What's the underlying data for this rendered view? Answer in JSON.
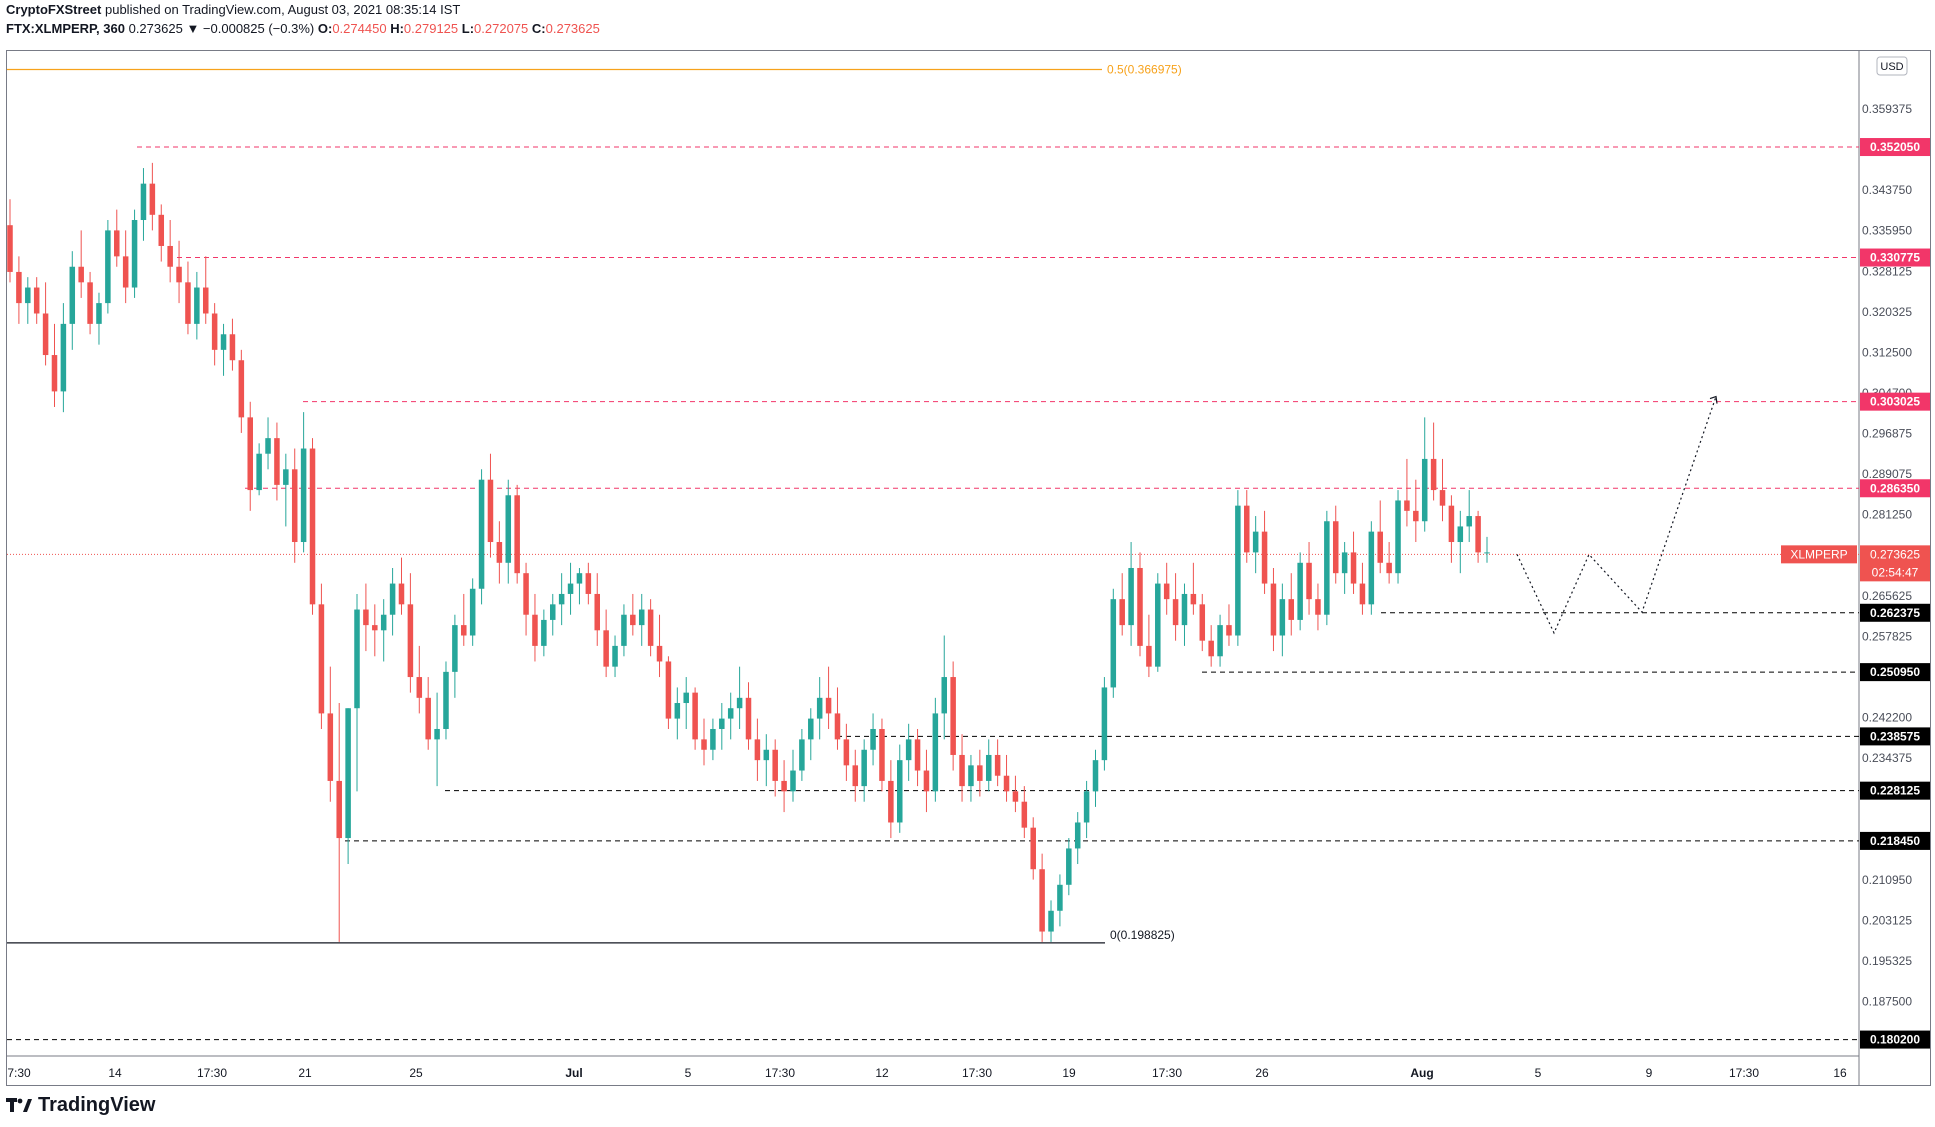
{
  "header": {
    "publisher": "CryptoFXStreet",
    "published_text": "published on TradingView.com, August 03, 2021 08:35:14 IST",
    "symbol": "FTX:XLMPERP, 360",
    "last": "0.273625",
    "change": "▼ −0.000825 (−0.3%)",
    "o_label": "O:",
    "o": "0.274450",
    "h_label": "H:",
    "h": "0.279125",
    "l_label": "L:",
    "l": "0.272075",
    "c_label": "C:",
    "c": "0.273625"
  },
  "footer": {
    "brand": "TradingView"
  },
  "colors": {
    "up": "#26a69a",
    "down": "#ef5350",
    "fib": "#f7a21b",
    "resistance": "#f23669",
    "support": "#000000"
  },
  "chart_data": {
    "type": "candlestick",
    "currency_label": "USD",
    "ylim": [
      0.178,
      0.369
    ],
    "y_ticks": [
      "0.359375",
      "0.343750",
      "0.335950",
      "0.328125",
      "0.320325",
      "0.312500",
      "0.304700",
      "0.296875",
      "0.289075",
      "0.281250",
      "0.265625",
      "0.257825",
      "0.242200",
      "0.234375",
      "0.210950",
      "0.203125",
      "0.195325",
      "0.187500"
    ],
    "x_ticks": [
      "7:30",
      "14",
      "17:30",
      "21",
      "25",
      "Jul",
      "5",
      "17:30",
      "12",
      "17:30",
      "19",
      "17:30",
      "26",
      "Aug",
      "5",
      "9",
      "17:30",
      "16"
    ],
    "resistance_levels": [
      "0.352050",
      "0.330775",
      "0.303025",
      "0.286350"
    ],
    "support_levels": [
      "0.262375",
      "0.250950",
      "0.238575",
      "0.228125",
      "0.218450",
      "0.180200"
    ],
    "current_price": {
      "symbol": "XLMPERP",
      "value": "0.273625",
      "countdown": "02:54:47"
    },
    "fib_top": "0.5(0.366975)",
    "fib_bottom": "0(0.198825)",
    "candles": [
      [
        0.337,
        0.342,
        0.326,
        0.328
      ],
      [
        0.328,
        0.331,
        0.318,
        0.322
      ],
      [
        0.322,
        0.327,
        0.318,
        0.325
      ],
      [
        0.325,
        0.327,
        0.318,
        0.32
      ],
      [
        0.32,
        0.326,
        0.31,
        0.312
      ],
      [
        0.312,
        0.318,
        0.302,
        0.305
      ],
      [
        0.305,
        0.322,
        0.301,
        0.318
      ],
      [
        0.318,
        0.332,
        0.313,
        0.329
      ],
      [
        0.329,
        0.336,
        0.323,
        0.326
      ],
      [
        0.326,
        0.328,
        0.316,
        0.318
      ],
      [
        0.318,
        0.324,
        0.314,
        0.322
      ],
      [
        0.322,
        0.338,
        0.32,
        0.336
      ],
      [
        0.336,
        0.34,
        0.329,
        0.331
      ],
      [
        0.331,
        0.336,
        0.322,
        0.325
      ],
      [
        0.325,
        0.34,
        0.323,
        0.338
      ],
      [
        0.338,
        0.348,
        0.334,
        0.345
      ],
      [
        0.345,
        0.349,
        0.336,
        0.339
      ],
      [
        0.339,
        0.341,
        0.33,
        0.333
      ],
      [
        0.333,
        0.338,
        0.326,
        0.329
      ],
      [
        0.329,
        0.334,
        0.322,
        0.326
      ],
      [
        0.326,
        0.33,
        0.316,
        0.318
      ],
      [
        0.318,
        0.328,
        0.315,
        0.325
      ],
      [
        0.325,
        0.331,
        0.318,
        0.32
      ],
      [
        0.32,
        0.322,
        0.31,
        0.313
      ],
      [
        0.313,
        0.318,
        0.308,
        0.316
      ],
      [
        0.316,
        0.319,
        0.309,
        0.311
      ],
      [
        0.311,
        0.313,
        0.297,
        0.3
      ],
      [
        0.3,
        0.303,
        0.282,
        0.286
      ],
      [
        0.286,
        0.295,
        0.285,
        0.293
      ],
      [
        0.293,
        0.3,
        0.29,
        0.296
      ],
      [
        0.296,
        0.299,
        0.284,
        0.287
      ],
      [
        0.287,
        0.293,
        0.279,
        0.29
      ],
      [
        0.29,
        0.294,
        0.272,
        0.276
      ],
      [
        0.276,
        0.301,
        0.274,
        0.294
      ],
      [
        0.294,
        0.296,
        0.262,
        0.264
      ],
      [
        0.264,
        0.268,
        0.24,
        0.243
      ],
      [
        0.243,
        0.252,
        0.226,
        0.23
      ],
      [
        0.23,
        0.245,
        0.199,
        0.219
      ],
      [
        0.219,
        0.244,
        0.214,
        0.244
      ],
      [
        0.244,
        0.266,
        0.228,
        0.263
      ],
      [
        0.263,
        0.268,
        0.255,
        0.26
      ],
      [
        0.26,
        0.264,
        0.254,
        0.259
      ],
      [
        0.259,
        0.265,
        0.253,
        0.262
      ],
      [
        0.262,
        0.271,
        0.258,
        0.268
      ],
      [
        0.268,
        0.273,
        0.262,
        0.264
      ],
      [
        0.264,
        0.27,
        0.247,
        0.25
      ],
      [
        0.25,
        0.256,
        0.243,
        0.246
      ],
      [
        0.246,
        0.25,
        0.236,
        0.238
      ],
      [
        0.238,
        0.247,
        0.229,
        0.24
      ],
      [
        0.24,
        0.253,
        0.238,
        0.251
      ],
      [
        0.251,
        0.262,
        0.246,
        0.26
      ],
      [
        0.26,
        0.266,
        0.256,
        0.258
      ],
      [
        0.258,
        0.269,
        0.256,
        0.267
      ],
      [
        0.267,
        0.29,
        0.264,
        0.288
      ],
      [
        0.288,
        0.293,
        0.273,
        0.276
      ],
      [
        0.276,
        0.28,
        0.268,
        0.272
      ],
      [
        0.272,
        0.288,
        0.268,
        0.285
      ],
      [
        0.285,
        0.287,
        0.268,
        0.27
      ],
      [
        0.27,
        0.272,
        0.258,
        0.262
      ],
      [
        0.262,
        0.266,
        0.253,
        0.256
      ],
      [
        0.256,
        0.263,
        0.254,
        0.261
      ],
      [
        0.261,
        0.266,
        0.258,
        0.264
      ],
      [
        0.264,
        0.27,
        0.26,
        0.266
      ],
      [
        0.266,
        0.272,
        0.262,
        0.268
      ],
      [
        0.268,
        0.271,
        0.264,
        0.27
      ],
      [
        0.27,
        0.272,
        0.264,
        0.266
      ],
      [
        0.266,
        0.27,
        0.256,
        0.259
      ],
      [
        0.259,
        0.263,
        0.25,
        0.252
      ],
      [
        0.252,
        0.258,
        0.25,
        0.256
      ],
      [
        0.256,
        0.264,
        0.254,
        0.262
      ],
      [
        0.262,
        0.266,
        0.258,
        0.26
      ],
      [
        0.26,
        0.266,
        0.256,
        0.263
      ],
      [
        0.263,
        0.265,
        0.254,
        0.256
      ],
      [
        0.256,
        0.262,
        0.25,
        0.253
      ],
      [
        0.253,
        0.254,
        0.24,
        0.242
      ],
      [
        0.242,
        0.248,
        0.238,
        0.245
      ],
      [
        0.245,
        0.25,
        0.24,
        0.247
      ],
      [
        0.247,
        0.248,
        0.236,
        0.238
      ],
      [
        0.238,
        0.242,
        0.233,
        0.236
      ],
      [
        0.236,
        0.242,
        0.234,
        0.24
      ],
      [
        0.24,
        0.245,
        0.236,
        0.242
      ],
      [
        0.242,
        0.247,
        0.238,
        0.244
      ],
      [
        0.244,
        0.252,
        0.24,
        0.246
      ],
      [
        0.246,
        0.249,
        0.236,
        0.238
      ],
      [
        0.238,
        0.242,
        0.23,
        0.234
      ],
      [
        0.234,
        0.239,
        0.229,
        0.236
      ],
      [
        0.236,
        0.238,
        0.227,
        0.23
      ],
      [
        0.23,
        0.234,
        0.224,
        0.228
      ],
      [
        0.228,
        0.236,
        0.226,
        0.232
      ],
      [
        0.232,
        0.24,
        0.23,
        0.238
      ],
      [
        0.238,
        0.244,
        0.234,
        0.242
      ],
      [
        0.242,
        0.25,
        0.238,
        0.246
      ],
      [
        0.246,
        0.252,
        0.24,
        0.243
      ],
      [
        0.243,
        0.248,
        0.236,
        0.238
      ],
      [
        0.238,
        0.241,
        0.23,
        0.233
      ],
      [
        0.233,
        0.236,
        0.226,
        0.229
      ],
      [
        0.229,
        0.238,
        0.226,
        0.236
      ],
      [
        0.236,
        0.243,
        0.233,
        0.24
      ],
      [
        0.24,
        0.242,
        0.228,
        0.23
      ],
      [
        0.23,
        0.234,
        0.219,
        0.222
      ],
      [
        0.222,
        0.237,
        0.22,
        0.234
      ],
      [
        0.234,
        0.241,
        0.23,
        0.238
      ],
      [
        0.238,
        0.24,
        0.229,
        0.232
      ],
      [
        0.232,
        0.236,
        0.224,
        0.228
      ],
      [
        0.228,
        0.246,
        0.226,
        0.243
      ],
      [
        0.243,
        0.258,
        0.238,
        0.25
      ],
      [
        0.25,
        0.253,
        0.232,
        0.235
      ],
      [
        0.235,
        0.239,
        0.226,
        0.229
      ],
      [
        0.229,
        0.235,
        0.226,
        0.233
      ],
      [
        0.233,
        0.236,
        0.227,
        0.23
      ],
      [
        0.23,
        0.238,
        0.228,
        0.235
      ],
      [
        0.235,
        0.238,
        0.229,
        0.231
      ],
      [
        0.231,
        0.235,
        0.226,
        0.228
      ],
      [
        0.228,
        0.231,
        0.224,
        0.226
      ],
      [
        0.226,
        0.229,
        0.219,
        0.221
      ],
      [
        0.221,
        0.223,
        0.211,
        0.213
      ],
      [
        0.213,
        0.216,
        0.199,
        0.201
      ],
      [
        0.201,
        0.207,
        0.199,
        0.205
      ],
      [
        0.205,
        0.212,
        0.202,
        0.21
      ],
      [
        0.21,
        0.219,
        0.208,
        0.217
      ],
      [
        0.217,
        0.224,
        0.214,
        0.222
      ],
      [
        0.222,
        0.23,
        0.219,
        0.228
      ],
      [
        0.228,
        0.236,
        0.225,
        0.234
      ],
      [
        0.234,
        0.25,
        0.232,
        0.248
      ],
      [
        0.248,
        0.267,
        0.246,
        0.265
      ],
      [
        0.265,
        0.27,
        0.258,
        0.26
      ],
      [
        0.26,
        0.276,
        0.256,
        0.271
      ],
      [
        0.271,
        0.274,
        0.254,
        0.256
      ],
      [
        0.256,
        0.262,
        0.25,
        0.252
      ],
      [
        0.252,
        0.27,
        0.251,
        0.268
      ],
      [
        0.268,
        0.272,
        0.262,
        0.265
      ],
      [
        0.265,
        0.27,
        0.257,
        0.26
      ],
      [
        0.26,
        0.268,
        0.256,
        0.266
      ],
      [
        0.266,
        0.272,
        0.262,
        0.264
      ],
      [
        0.264,
        0.266,
        0.255,
        0.257
      ],
      [
        0.257,
        0.26,
        0.252,
        0.254
      ],
      [
        0.254,
        0.262,
        0.252,
        0.26
      ],
      [
        0.26,
        0.264,
        0.256,
        0.258
      ],
      [
        0.258,
        0.286,
        0.256,
        0.283
      ],
      [
        0.283,
        0.286,
        0.272,
        0.274
      ],
      [
        0.274,
        0.281,
        0.27,
        0.278
      ],
      [
        0.278,
        0.282,
        0.266,
        0.268
      ],
      [
        0.268,
        0.271,
        0.255,
        0.258
      ],
      [
        0.258,
        0.268,
        0.254,
        0.265
      ],
      [
        0.265,
        0.27,
        0.258,
        0.261
      ],
      [
        0.261,
        0.274,
        0.259,
        0.272
      ],
      [
        0.272,
        0.276,
        0.262,
        0.265
      ],
      [
        0.265,
        0.268,
        0.259,
        0.262
      ],
      [
        0.262,
        0.282,
        0.26,
        0.28
      ],
      [
        0.28,
        0.283,
        0.268,
        0.27
      ],
      [
        0.27,
        0.276,
        0.266,
        0.274
      ],
      [
        0.274,
        0.278,
        0.266,
        0.268
      ],
      [
        0.268,
        0.272,
        0.262,
        0.264
      ],
      [
        0.264,
        0.28,
        0.262,
        0.278
      ],
      [
        0.278,
        0.284,
        0.27,
        0.272
      ],
      [
        0.272,
        0.276,
        0.268,
        0.27
      ],
      [
        0.27,
        0.286,
        0.268,
        0.284
      ],
      [
        0.284,
        0.292,
        0.279,
        0.282
      ],
      [
        0.282,
        0.288,
        0.276,
        0.28
      ],
      [
        0.28,
        0.3,
        0.278,
        0.292
      ],
      [
        0.292,
        0.299,
        0.284,
        0.286
      ],
      [
        0.286,
        0.292,
        0.28,
        0.283
      ],
      [
        0.283,
        0.285,
        0.272,
        0.276
      ],
      [
        0.276,
        0.282,
        0.27,
        0.279
      ],
      [
        0.279,
        0.286,
        0.276,
        0.281
      ],
      [
        0.281,
        0.282,
        0.272,
        0.274
      ],
      [
        0.274,
        0.277,
        0.272,
        0.274
      ]
    ],
    "projection": [
      [
        0.273625,
        0.25
      ],
      [
        0.2555,
        0.275
      ],
      [
        0.262,
        0.304
      ]
    ]
  }
}
